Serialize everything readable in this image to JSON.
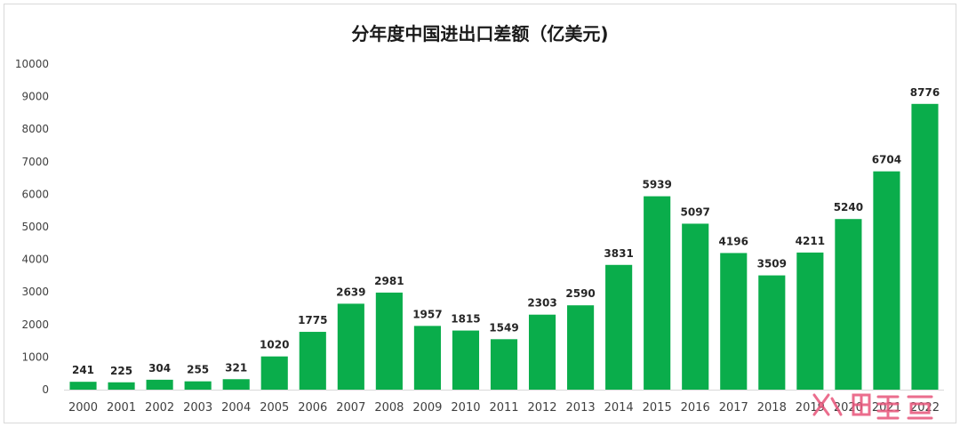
{
  "chart_data": {
    "type": "bar",
    "title": "分年度中国进出口差额（亿美元)",
    "xlabel": "",
    "ylabel": "",
    "ylim": [
      0,
      10000
    ],
    "yticks": [
      0,
      1000,
      2000,
      3000,
      4000,
      5000,
      6000,
      7000,
      8000,
      9000,
      10000
    ],
    "grid": false,
    "legend": "none",
    "bar_color": "#0aad4b",
    "categories": [
      "2000",
      "2001",
      "2002",
      "2003",
      "2004",
      "2005",
      "2006",
      "2007",
      "2008",
      "2009",
      "2010",
      "2011",
      "2012",
      "2013",
      "2014",
      "2015",
      "2016",
      "2017",
      "2018",
      "2019",
      "2020",
      "2021",
      "2022"
    ],
    "values": [
      241,
      225,
      304,
      255,
      321,
      1020,
      1775,
      2639,
      2981,
      1957,
      1815,
      1549,
      2303,
      2590,
      3831,
      5939,
      5097,
      4196,
      3509,
      4211,
      5240,
      6704,
      8776
    ]
  },
  "watermark": {
    "text": "人人都是产品经理"
  }
}
